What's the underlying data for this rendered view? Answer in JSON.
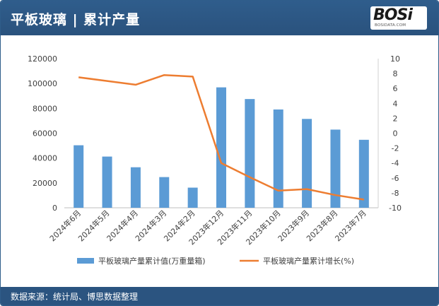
{
  "header": {
    "title": "平板玻璃 | 累计产量"
  },
  "logo": {
    "word": "BOSi",
    "url": "BOSIDATA.COM"
  },
  "footer": {
    "source": "数据来源：统计局、博思数据整理"
  },
  "colors": {
    "header_bg": "#2d5986",
    "bar": "#5b9bd5",
    "line": "#ed7d31",
    "footer_bg": "#2b5480"
  },
  "chart_data": {
    "type": "bar",
    "categories": [
      "2024年6月",
      "2024年5月",
      "2024年4月",
      "2024年3月",
      "2024年2月",
      "2023年12月",
      "2023年11月",
      "2023年10月",
      "2023年9月",
      "2023年8月",
      "2023年7月"
    ],
    "series": [
      {
        "name": "平板玻璃产量累计值(万重量箱)",
        "type": "bar",
        "axis": "left",
        "values": [
          50300,
          41200,
          32600,
          24700,
          16200,
          96900,
          87500,
          79100,
          71500,
          62900,
          54700
        ]
      },
      {
        "name": "平板玻璃产量累计增长(%)",
        "type": "line",
        "axis": "right",
        "values": [
          7.5,
          7.0,
          6.5,
          7.8,
          7.6,
          -4.0,
          -5.9,
          -7.7,
          -7.5,
          -8.3,
          -8.9
        ]
      }
    ],
    "yleft": {
      "ylim": [
        0,
        120000
      ],
      "ticks": [
        "0",
        "20000",
        "40000",
        "60000",
        "80000",
        "100000",
        "120000"
      ]
    },
    "yright": {
      "ylim": [
        -10,
        10
      ],
      "ticks": [
        "-10",
        "-8",
        "-6",
        "-4",
        "-2",
        "0",
        "2",
        "4",
        "6",
        "8",
        "10"
      ]
    },
    "legend_position": "bottom",
    "grid": false
  }
}
